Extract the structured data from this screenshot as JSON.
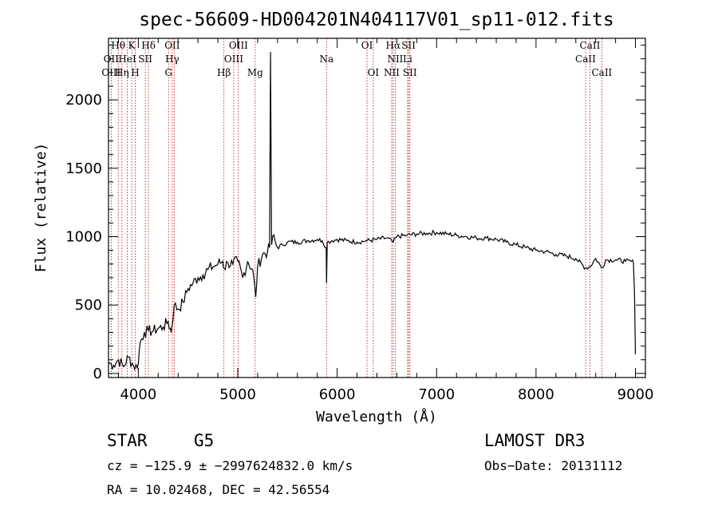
{
  "chart_data": {
    "type": "line",
    "title": "spec-56609-HD004201N404117V01_sp11-012.fits",
    "xlabel": "Wavelength (Å)",
    "ylabel": "Flux (relative)",
    "xlim": [
      3700,
      9100
    ],
    "ylim": [
      -30,
      2450
    ],
    "xticks": [
      4000,
      5000,
      6000,
      7000,
      8000,
      9000
    ],
    "yticks": [
      0,
      500,
      1000,
      1500,
      2000
    ],
    "series": [
      {
        "name": "spectrum",
        "x": [
          3700,
          3750,
          3800,
          3850,
          3900,
          3950,
          3990,
          4020,
          4060,
          4100,
          4150,
          4200,
          4250,
          4300,
          4330,
          4360,
          4400,
          4450,
          4500,
          4550,
          4600,
          4650,
          4700,
          4750,
          4800,
          4850,
          4861,
          4900,
          4950,
          5000,
          5050,
          5100,
          5150,
          5180,
          5200,
          5250,
          5300,
          5320,
          5330,
          5340,
          5350,
          5400,
          5450,
          5500,
          5600,
          5700,
          5800,
          5850,
          5890,
          5893,
          5900,
          5950,
          6000,
          6100,
          6200,
          6300,
          6400,
          6500,
          6563,
          6600,
          6700,
          6800,
          6900,
          7000,
          7100,
          7200,
          7300,
          7400,
          7500,
          7600,
          7700,
          7800,
          7900,
          8000,
          8100,
          8200,
          8300,
          8400,
          8498,
          8542,
          8600,
          8662,
          8700,
          8800,
          8900,
          8960,
          8980,
          8990,
          9000
        ],
        "values": [
          80,
          60,
          100,
          50,
          120,
          60,
          40,
          230,
          300,
          310,
          310,
          330,
          340,
          380,
          300,
          500,
          470,
          520,
          620,
          660,
          700,
          720,
          760,
          780,
          800,
          820,
          770,
          810,
          800,
          820,
          700,
          820,
          760,
          560,
          780,
          870,
          890,
          920,
          2350,
          940,
          1000,
          920,
          940,
          960,
          960,
          970,
          980,
          970,
          920,
          660,
          960,
          970,
          980,
          970,
          960,
          970,
          980,
          990,
          960,
          1000,
          1010,
          1020,
          1025,
          1030,
          1020,
          1010,
          1000,
          990,
          990,
          980,
          960,
          940,
          920,
          900,
          890,
          870,
          860,
          840,
          770,
          780,
          840,
          770,
          830,
          830,
          820,
          820,
          810,
          600,
          140
        ]
      }
    ],
    "lines": {
      "top": [
        {
          "text": "Hθ",
          "x": 3798
        },
        {
          "text": "K",
          "x": 3934
        },
        {
          "text": "Hδ",
          "x": 4102
        },
        {
          "text": "OII",
          "x": 4341
        },
        {
          "text": "OIII",
          "x": 5007
        },
        {
          "text": "OI",
          "x": 6300
        },
        {
          "text": "Hα",
          "x": 6563
        },
        {
          "text": "SII",
          "x": 6718
        },
        {
          "text": "CaII",
          "x": 8542
        }
      ],
      "mid": [
        {
          "text": "OII",
          "x": 3727
        },
        {
          "text": "HeI",
          "x": 3889
        },
        {
          "text": "SII",
          "x": 4070
        },
        {
          "text": "Hγ",
          "x": 4341
        },
        {
          "text": "OIII",
          "x": 4959
        },
        {
          "text": "Na",
          "x": 5893
        },
        {
          "text": "NII",
          "x": 6584
        },
        {
          "text": "Li",
          "x": 6708
        },
        {
          "text": "CaII",
          "x": 8498
        }
      ],
      "low": [
        {
          "text": "OIII",
          "x": 3727
        },
        {
          "text": "Hη",
          "x": 3835
        },
        {
          "text": "H",
          "x": 3969
        },
        {
          "text": "G",
          "x": 4304
        },
        {
          "text": "Hβ",
          "x": 4861
        },
        {
          "text": "Mg",
          "x": 5175
        },
        {
          "text": "OI",
          "x": 6363
        },
        {
          "text": "NII",
          "x": 6548
        },
        {
          "text": "SII",
          "x": 6731
        },
        {
          "text": "CaII",
          "x": 8662
        }
      ]
    },
    "marker_lines": [
      3727,
      3798,
      3835,
      3889,
      3934,
      3969,
      4070,
      4102,
      4304,
      4341,
      4363,
      4861,
      4959,
      5007,
      5175,
      5893,
      6300,
      6363,
      6548,
      6563,
      6584,
      6708,
      6718,
      6731,
      8498,
      8542,
      8662
    ],
    "colors": {
      "spectrum": "#000000",
      "marker": "#cc0000",
      "axes": "#000000"
    }
  },
  "info": {
    "class": "STAR",
    "subclass": "G5",
    "survey": "LAMOST DR3",
    "cz": "cz = −125.9 ± −2997624832.0 km/s",
    "obs_date": "Obs−Date: 20131112",
    "radec": "RA =  10.02468, DEC =  42.56554"
  }
}
